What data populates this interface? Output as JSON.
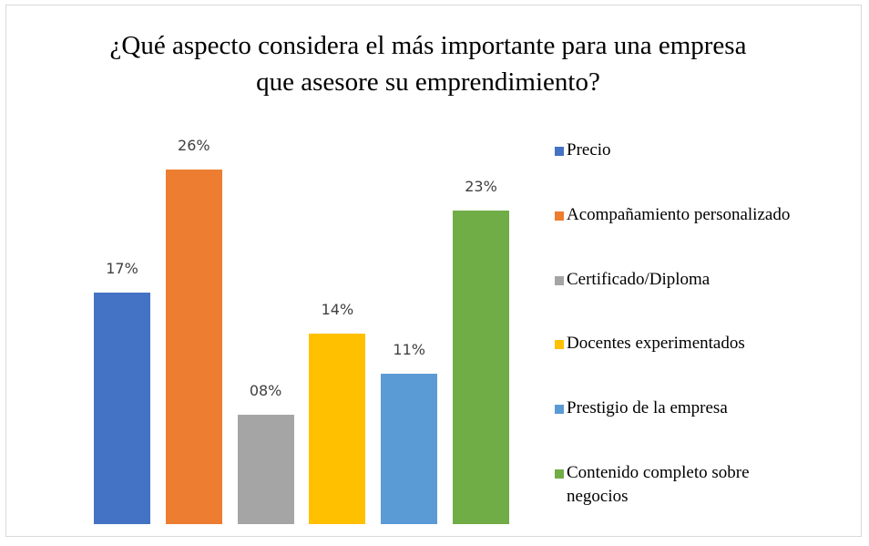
{
  "chart_data": {
    "type": "bar",
    "title": "¿Qué aspecto considera el más importante para una empresa que asesore su emprendimiento?",
    "categories": [
      "Precio",
      "Acompañamiento personalizado",
      "Certificado/Diploma",
      "Docentes experimentados",
      "Prestigio de la empresa",
      "Contenido completo sobre negocios"
    ],
    "values": [
      17,
      26,
      8,
      14,
      11,
      23
    ],
    "value_labels": [
      "17%",
      "26%",
      "08%",
      "14%",
      "11%",
      "23%"
    ],
    "colors": [
      "#4472c4",
      "#ed7d31",
      "#a5a5a5",
      "#ffc000",
      "#5b9bd5",
      "#70ad47"
    ],
    "legend": "right"
  }
}
